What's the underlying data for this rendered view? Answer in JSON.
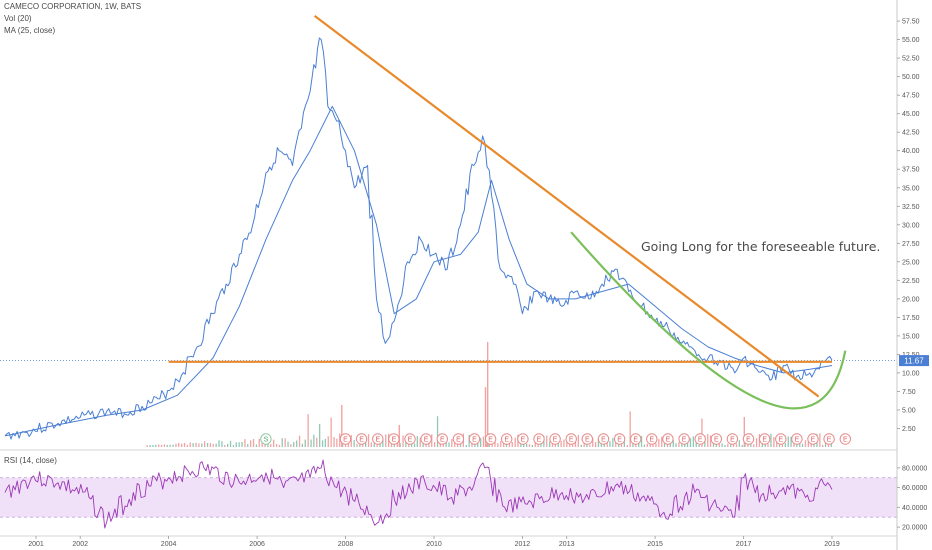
{
  "legend": {
    "title": "CAMECO CORPORATION, 1W, BATS",
    "vol": "Vol (20)",
    "ma": "MA (25, close)",
    "rsi": "RSI (14, close)"
  },
  "annotation": "Going Long for the foreseeable future.",
  "price_label": "11.67",
  "colors": {
    "price": "#4a7fd4",
    "trend": "#e8892b",
    "arc": "#7bbf5a",
    "rsi": "#9b38b6",
    "rsi_band": "#f1e1f8",
    "vol_up": "#8fc9b5",
    "vol_down": "#f2a3a3"
  },
  "chart_data": [
    {
      "type": "line",
      "title": "CAMECO CORPORATION, 1W, BATS",
      "x_ticks": [
        "2001",
        "2002",
        "2004",
        "2006",
        "2008",
        "2010",
        "2012",
        "2013",
        "2015",
        "2017",
        "2019"
      ],
      "y_ticks": [
        "57.50",
        "55.00",
        "52.50",
        "50.00",
        "47.50",
        "45.00",
        "42.50",
        "40.00",
        "37.50",
        "35.00",
        "32.50",
        "30.00",
        "27.50",
        "25.00",
        "22.50",
        "20.00",
        "17.50",
        "15.00",
        "12.50",
        "10.00",
        "7.50",
        "5.00",
        "2.50"
      ],
      "ylim": [
        0,
        59
      ],
      "series": [
        {
          "name": "",
          "x": [
            2000.3,
            2000.8,
            2001.5,
            2002.0,
            2002.6,
            2003.0,
            2003.4,
            2003.8,
            2004.2,
            2004.6,
            2005.0,
            2005.3,
            2005.6,
            2005.9,
            2006.2,
            2006.5,
            2006.8,
            2007.0,
            2007.2,
            2007.45,
            2007.6,
            2007.8,
            2008.0,
            2008.2,
            2008.5,
            2008.7,
            2008.9,
            2009.1,
            2009.4,
            2009.7,
            2010.0,
            2010.3,
            2010.6,
            2010.9,
            2011.1,
            2011.3,
            2011.5,
            2011.8,
            2012.0,
            2012.3,
            2012.6,
            2012.9,
            2013.2,
            2013.5,
            2013.8,
            2014.1,
            2014.4,
            2014.7,
            2015.0,
            2015.3,
            2015.6,
            2015.9,
            2016.2,
            2016.5,
            2016.8,
            2017.0,
            2017.3,
            2017.6,
            2017.9,
            2018.2,
            2018.5,
            2018.8,
            2019.0
          ],
          "values": [
            1.5,
            2.0,
            3.2,
            4.0,
            4.8,
            4.5,
            5.5,
            6.5,
            9.0,
            13.0,
            18.0,
            22.0,
            26.0,
            30.0,
            37.0,
            40.0,
            38.0,
            43.0,
            48.0,
            55.0,
            46.0,
            44.0,
            40.0,
            35.0,
            38.0,
            20.0,
            14.0,
            17.0,
            25.0,
            28.0,
            26.0,
            24.0,
            30.0,
            38.0,
            42.0,
            34.0,
            24.0,
            22.0,
            18.0,
            21.0,
            20.0,
            19.0,
            21.0,
            20.0,
            22.0,
            24.0,
            21.0,
            19.0,
            17.0,
            16.0,
            14.0,
            13.0,
            12.0,
            11.5,
            10.0,
            12.0,
            10.5,
            9.0,
            11.0,
            9.5,
            10.0,
            11.5,
            11.7
          ]
        },
        {
          "name": "MA (25, close)",
          "x": [
            2000.3,
            2001.5,
            2002.6,
            2003.4,
            2004.2,
            2005.0,
            2005.6,
            2006.2,
            2006.8,
            2007.2,
            2007.7,
            2008.2,
            2008.7,
            2009.1,
            2009.6,
            2010.0,
            2010.6,
            2011.0,
            2011.3,
            2011.7,
            2012.1,
            2012.6,
            2013.2,
            2013.8,
            2014.4,
            2015.0,
            2015.6,
            2016.2,
            2016.8,
            2017.3,
            2017.9,
            2018.5,
            2019.0
          ],
          "values": [
            1.5,
            3.0,
            4.3,
            5.0,
            7.0,
            12.0,
            19.0,
            28.0,
            36.0,
            40.0,
            46.0,
            40.0,
            30.0,
            18.0,
            20.0,
            25.0,
            26.0,
            29.0,
            36.0,
            28.0,
            22.0,
            20.0,
            20.0,
            21.0,
            22.0,
            19.0,
            16.0,
            13.5,
            12.0,
            11.0,
            10.0,
            10.5,
            11.0
          ]
        }
      ],
      "trend_lines": [
        {
          "name": "descending",
          "x": [
            2007.3,
            2018.7
          ],
          "values": [
            58.2,
            6.8
          ]
        },
        {
          "name": "support",
          "x": [
            2004.0,
            2019.0
          ],
          "values": [
            11.5,
            11.5
          ]
        }
      ],
      "arc": {
        "x": [
          2013.1,
          2017.4,
          2019.3
        ],
        "values": [
          29.0,
          6.3,
          13.0
        ]
      }
    },
    {
      "type": "bar",
      "title": "Vol (20)",
      "note": "weekly volume bars, relative scale",
      "events": {
        "S_count": 1,
        "E_count": 32
      }
    },
    {
      "type": "line",
      "title": "RSI (14, close)",
      "y_ticks": [
        "80.0000",
        "60.0000",
        "40.0000",
        "20.0000"
      ],
      "ylim": [
        15,
        90
      ],
      "band": [
        30,
        70
      ],
      "series": [
        {
          "name": "RSI (14, close)",
          "x": [
            2000.3,
            2000.9,
            2001.5,
            2002.2,
            2002.6,
            2003.2,
            2004.0,
            2004.8,
            2005.6,
            2006.2,
            2006.6,
            2007.2,
            2007.45,
            2007.8,
            2008.3,
            2008.75,
            2009.2,
            2009.8,
            2010.4,
            2010.9,
            2011.15,
            2011.6,
            2012.2,
            2012.9,
            2013.5,
            2014.1,
            2014.7,
            2015.2,
            2015.9,
            2016.4,
            2016.8,
            2017.0,
            2017.4,
            2017.9,
            2018.4,
            2018.9,
            2019.0
          ],
          "values": [
            55,
            70,
            65,
            50,
            25,
            55,
            70,
            80,
            65,
            75,
            60,
            70,
            80,
            60,
            45,
            25,
            55,
            65,
            50,
            62,
            80,
            40,
            45,
            55,
            48,
            62,
            50,
            35,
            55,
            40,
            30,
            70,
            52,
            60,
            50,
            65,
            58
          ]
        }
      ]
    }
  ]
}
